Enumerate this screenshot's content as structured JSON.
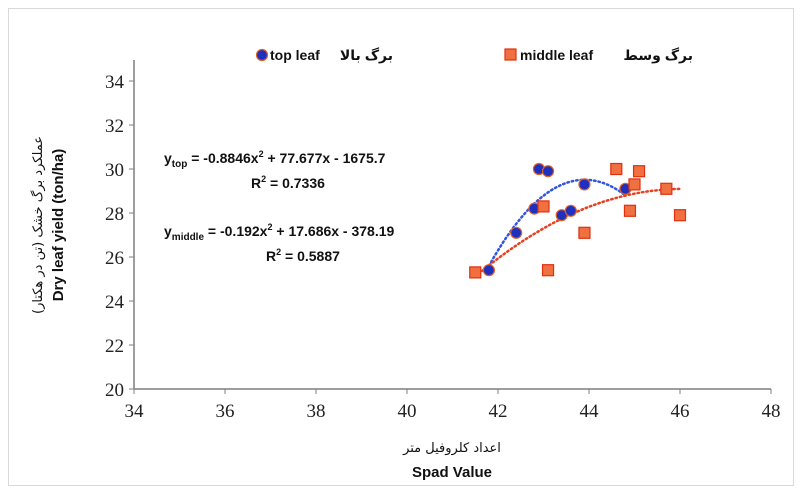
{
  "chart_data": {
    "type": "scatter",
    "xlim": [
      34,
      48
    ],
    "ylim": [
      20,
      35
    ],
    "x_ticks": [
      34,
      36,
      38,
      40,
      42,
      44,
      46,
      48
    ],
    "y_ticks": [
      20,
      22,
      24,
      26,
      28,
      30,
      32,
      34
    ],
    "xlabel": "Spad Value",
    "xlabel_fa": "اعداد کلروفیل متر",
    "ylabel": "Dry leaf yield (ton/ha)",
    "ylabel_fa": "عملکرد برگ خشک (تن در هکتار)",
    "grid": false,
    "legend_position": "top",
    "series": [
      {
        "name": "top leaf",
        "name_fa": "برگ بالا",
        "marker": "circle",
        "color": "#1f2fbf",
        "edge_color": "#e06020",
        "trend_color": "#3355dd",
        "x": [
          41.8,
          42.4,
          42.8,
          42.9,
          43.1,
          43.4,
          43.6,
          43.9,
          44.8
        ],
        "y": [
          25.4,
          27.1,
          28.2,
          30.0,
          29.9,
          27.9,
          28.1,
          29.3,
          29.1
        ],
        "fit": [
          -0.8846,
          77.677,
          -1675.7
        ],
        "equation_label": "y",
        "equation_sub": "top",
        "equation": " = -0.8846x",
        "equation_tail": " + 77.677x - 1675.7",
        "r2_label": "R",
        "r2_value": " = 0.7336"
      },
      {
        "name": "middle leaf",
        "name_fa": "برگ وسط",
        "marker": "square",
        "color": "#f07040",
        "edge_color": "#e03010",
        "trend_color": "#e84020",
        "x": [
          41.5,
          43.0,
          43.1,
          43.9,
          44.6,
          44.9,
          45.0,
          45.1,
          45.7,
          46.0
        ],
        "y": [
          25.3,
          28.3,
          25.4,
          27.1,
          30.0,
          28.1,
          29.3,
          29.9,
          29.1,
          27.9
        ],
        "fit": [
          -0.192,
          17.686,
          -378.19
        ],
        "equation_label": "y",
        "equation_sub": "middle",
        "equation": " = -0.192x",
        "equation_tail": " + 17.686x - 378.19",
        "r2_label": "R",
        "r2_value": " = 0.5887"
      }
    ]
  }
}
